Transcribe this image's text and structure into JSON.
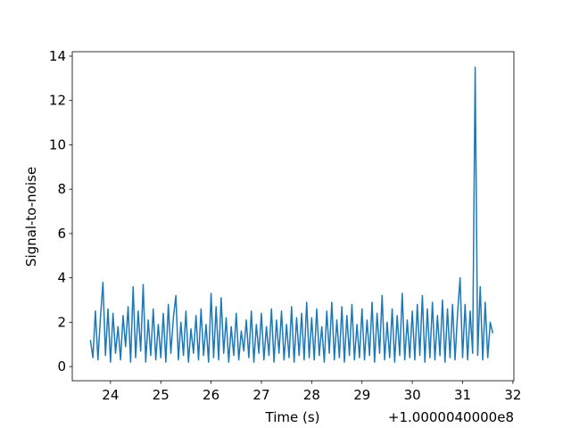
{
  "chart_data": {
    "type": "line",
    "xlabel": "Time (s)",
    "ylabel": "Signal-to-noise",
    "x_offset_label": "+1.0000040000e8",
    "x": [
      23.6,
      23.65,
      23.7,
      23.75,
      23.8,
      23.85,
      23.9,
      23.95,
      24.0,
      24.05,
      24.1,
      24.15,
      24.2,
      24.25,
      24.3,
      24.35,
      24.4,
      24.45,
      24.5,
      24.55,
      24.6,
      24.65,
      24.7,
      24.75,
      24.8,
      24.85,
      24.9,
      24.95,
      25.0,
      25.05,
      25.1,
      25.15,
      25.2,
      25.25,
      25.3,
      25.35,
      25.4,
      25.45,
      25.5,
      25.55,
      25.6,
      25.65,
      25.7,
      25.75,
      25.8,
      25.85,
      25.9,
      25.95,
      26.0,
      26.05,
      26.1,
      26.15,
      26.2,
      26.25,
      26.3,
      26.35,
      26.4,
      26.45,
      26.5,
      26.55,
      26.6,
      26.65,
      26.7,
      26.75,
      26.8,
      26.85,
      26.9,
      26.95,
      27.0,
      27.05,
      27.1,
      27.15,
      27.2,
      27.25,
      27.3,
      27.35,
      27.4,
      27.45,
      27.5,
      27.55,
      27.6,
      27.65,
      27.7,
      27.75,
      27.8,
      27.85,
      27.9,
      27.95,
      28.0,
      28.05,
      28.1,
      28.15,
      28.2,
      28.25,
      28.3,
      28.35,
      28.4,
      28.45,
      28.5,
      28.55,
      28.6,
      28.65,
      28.7,
      28.75,
      28.8,
      28.85,
      28.9,
      28.95,
      29.0,
      29.05,
      29.1,
      29.15,
      29.2,
      29.25,
      29.3,
      29.35,
      29.4,
      29.45,
      29.5,
      29.55,
      29.6,
      29.65,
      29.7,
      29.75,
      29.8,
      29.85,
      29.9,
      29.95,
      30.0,
      30.05,
      30.1,
      30.15,
      30.2,
      30.25,
      30.3,
      30.35,
      30.4,
      30.45,
      30.5,
      30.55,
      30.6,
      30.65,
      30.7,
      30.75,
      30.8,
      30.85,
      30.9,
      30.95,
      31.0,
      31.05,
      31.1,
      31.15,
      31.2,
      31.25,
      31.3,
      31.35,
      31.4,
      31.45,
      31.5,
      31.55,
      31.6
    ],
    "series": [
      {
        "color": "#1f77b4",
        "values": [
          1.2,
          0.4,
          2.5,
          0.3,
          2.2,
          3.8,
          0.5,
          2.6,
          0.2,
          2.4,
          0.6,
          1.8,
          0.3,
          2.3,
          0.9,
          2.7,
          0.2,
          3.6,
          0.4,
          2.5,
          0.7,
          3.7,
          0.2,
          2.1,
          0.5,
          2.6,
          0.3,
          1.9,
          0.4,
          2.4,
          0.2,
          2.8,
          0.6,
          2.2,
          3.2,
          0.3,
          2.0,
          0.5,
          2.5,
          0.2,
          1.7,
          0.6,
          2.3,
          0.3,
          2.6,
          0.5,
          1.9,
          0.2,
          3.3,
          0.4,
          2.7,
          0.3,
          3.1,
          0.6,
          2.2,
          0.2,
          1.8,
          0.5,
          2.4,
          0.3,
          1.6,
          0.7,
          2.1,
          0.4,
          2.5,
          0.2,
          1.9,
          0.6,
          2.4,
          0.3,
          1.8,
          0.5,
          2.6,
          0.2,
          2.1,
          0.6,
          2.5,
          0.3,
          1.9,
          0.4,
          2.7,
          0.2,
          2.2,
          0.5,
          2.4,
          0.3,
          2.9,
          0.4,
          2.2,
          0.3,
          2.6,
          0.5,
          1.8,
          0.2,
          2.5,
          0.6,
          2.9,
          0.3,
          2.1,
          0.4,
          2.7,
          0.2,
          2.3,
          0.5,
          2.8,
          0.3,
          1.9,
          0.4,
          2.6,
          0.3,
          2.1,
          0.5,
          2.9,
          0.2,
          2.4,
          0.6,
          3.2,
          0.3,
          2.0,
          0.4,
          2.6,
          0.2,
          2.3,
          0.5,
          3.3,
          0.3,
          2.1,
          0.4,
          2.5,
          0.3,
          2.8,
          0.5,
          3.2,
          0.2,
          2.6,
          0.4,
          2.9,
          0.3,
          2.3,
          0.5,
          3.0,
          0.2,
          2.6,
          0.4,
          2.8,
          0.3,
          2.4,
          4.0,
          0.4,
          2.8,
          0.3,
          2.5,
          0.6,
          13.5,
          0.5,
          3.6,
          0.3,
          2.9,
          0.4,
          2.0,
          1.5
        ]
      }
    ],
    "xlim": [
      23.24,
      32.02
    ],
    "ylim": [
      -0.64,
      14.2
    ],
    "xticks": [
      24,
      25,
      26,
      27,
      28,
      29,
      30,
      31,
      32
    ],
    "yticks": [
      0,
      2,
      4,
      6,
      8,
      10,
      12,
      14
    ]
  }
}
